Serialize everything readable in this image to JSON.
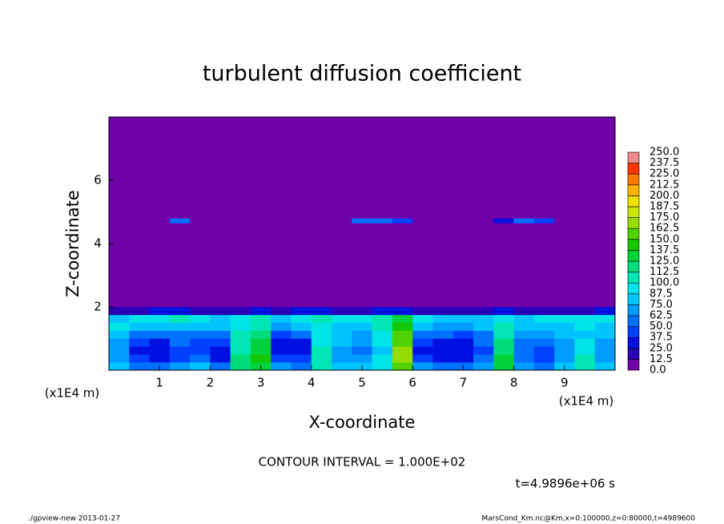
{
  "chart_data": {
    "type": "heatmap",
    "title": "turbulent diffusion coefficient",
    "x_label": "X-coordinate",
    "y_label": "Z-coordinate",
    "x_unit": "(x1E4 m)",
    "y_unit": "(x1E4 m)",
    "xlim": [
      0,
      100000
    ],
    "ylim": [
      0,
      80000
    ],
    "xticks": [
      {
        "value": 10000,
        "label": "1"
      },
      {
        "value": 20000,
        "label": "2"
      },
      {
        "value": 30000,
        "label": "3"
      },
      {
        "value": 40000,
        "label": "4"
      },
      {
        "value": 50000,
        "label": "5"
      },
      {
        "value": 60000,
        "label": "6"
      },
      {
        "value": 70000,
        "label": "7"
      },
      {
        "value": 80000,
        "label": "8"
      },
      {
        "value": 90000,
        "label": "9"
      }
    ],
    "yticks": [
      {
        "value": 20000,
        "label": "2"
      },
      {
        "value": 40000,
        "label": "4"
      },
      {
        "value": 60000,
        "label": "6"
      }
    ],
    "x_edges": [
      0,
      4000,
      8000,
      12000,
      16000,
      20000,
      24000,
      28000,
      32000,
      36000,
      40000,
      44000,
      48000,
      52000,
      56000,
      60000,
      64000,
      68000,
      72000,
      76000,
      80000,
      84000,
      88000,
      92000,
      96000,
      100000
    ],
    "y_edges": [
      0,
      2500,
      5000,
      7500,
      10000,
      12500,
      15000,
      17500,
      20000,
      46500,
      48000,
      80000
    ],
    "z": [
      [
        75,
        60,
        55,
        65,
        80,
        60,
        120,
        130,
        70,
        60,
        110,
        80,
        75,
        95,
        150,
        70,
        60,
        55,
        65,
        130,
        70,
        60,
        75,
        110,
        80
      ],
      [
        70,
        40,
        30,
        45,
        50,
        35,
        115,
        140,
        45,
        40,
        105,
        70,
        65,
        90,
        165,
        45,
        30,
        30,
        50,
        125,
        55,
        45,
        70,
        100,
        70
      ],
      [
        65,
        35,
        25,
        40,
        40,
        30,
        110,
        135,
        35,
        30,
        100,
        70,
        60,
        85,
        170,
        35,
        25,
        28,
        45,
        120,
        50,
        45,
        65,
        95,
        65
      ],
      [
        70,
        45,
        35,
        50,
        45,
        40,
        105,
        125,
        30,
        35,
        95,
        75,
        65,
        90,
        160,
        45,
        35,
        35,
        50,
        115,
        60,
        55,
        70,
        90,
        70
      ],
      [
        80,
        60,
        50,
        60,
        55,
        55,
        100,
        115,
        45,
        50,
        90,
        75,
        70,
        95,
        150,
        60,
        50,
        45,
        55,
        110,
        70,
        65,
        75,
        85,
        75
      ],
      [
        90,
        80,
        75,
        85,
        80,
        80,
        95,
        105,
        70,
        75,
        95,
        80,
        80,
        100,
        140,
        75,
        70,
        65,
        75,
        105,
        80,
        80,
        85,
        90,
        85
      ],
      [
        85,
        90,
        95,
        100,
        90,
        85,
        90,
        100,
        85,
        90,
        100,
        90,
        95,
        110,
        130,
        90,
        85,
        80,
        85,
        95,
        85,
        90,
        90,
        95,
        90
      ],
      [
        20,
        15,
        25,
        30,
        20,
        15,
        20,
        25,
        20,
        25,
        30,
        20,
        15,
        25,
        30,
        20,
        15,
        15,
        20,
        25,
        20,
        15,
        20,
        20,
        25
      ],
      [
        0,
        0,
        0,
        0,
        0,
        0,
        0,
        0,
        0,
        0,
        0,
        0,
        0,
        0,
        0,
        0,
        0,
        0,
        0,
        0,
        0,
        0,
        0,
        0,
        0
      ],
      [
        0,
        0,
        0,
        55,
        0,
        0,
        0,
        0,
        0,
        0,
        0,
        0,
        50,
        50,
        45,
        0,
        0,
        0,
        0,
        35,
        50,
        40,
        0,
        0,
        0
      ],
      [
        0,
        0,
        0,
        0,
        0,
        0,
        0,
        0,
        0,
        0,
        0,
        0,
        0,
        0,
        0,
        0,
        0,
        0,
        0,
        0,
        0,
        0,
        0,
        0,
        0
      ]
    ],
    "levels": [
      {
        "value": 0,
        "label": "0.0"
      },
      {
        "value": 12.5,
        "label": "12.5"
      },
      {
        "value": 25,
        "label": "25.0"
      },
      {
        "value": 37.5,
        "label": "37.5"
      },
      {
        "value": 50,
        "label": "50.0"
      },
      {
        "value": 62.5,
        "label": "62.5"
      },
      {
        "value": 75,
        "label": "75.0"
      },
      {
        "value": 87.5,
        "label": "87.5"
      },
      {
        "value": 100,
        "label": "100.0"
      },
      {
        "value": 112.5,
        "label": "112.5"
      },
      {
        "value": 125,
        "label": "125.0"
      },
      {
        "value": 137.5,
        "label": "137.5"
      },
      {
        "value": 150,
        "label": "150.0"
      },
      {
        "value": 162.5,
        "label": "162.5"
      },
      {
        "value": 175,
        "label": "175.0"
      },
      {
        "value": 187.5,
        "label": "187.5"
      },
      {
        "value": 200,
        "label": "200.0"
      },
      {
        "value": 212.5,
        "label": "212.5"
      },
      {
        "value": 225,
        "label": "225.0"
      },
      {
        "value": 237.5,
        "label": "237.5"
      },
      {
        "value": 250,
        "label": "250.0"
      }
    ],
    "colors": [
      "#7000a8",
      "#2a00b8",
      "#0010e0",
      "#0040ff",
      "#0070ff",
      "#009cff",
      "#00c4ff",
      "#00e4e8",
      "#00e6b4",
      "#00dc78",
      "#00d23c",
      "#14c800",
      "#50d200",
      "#96dc00",
      "#c8e600",
      "#f0e000",
      "#ffb400",
      "#ff7800",
      "#ff3200",
      "#f08a8a"
    ],
    "annotation": "CONTOUR INTERVAL = 1.000E+02",
    "time_label": "t=4.9896e+06 s",
    "footer_left": "./gpview-new  2013-01-27",
    "footer_right": "MarsCond_Km.nc@Km,x=0:100000,z=0:80000,t=4989600"
  }
}
